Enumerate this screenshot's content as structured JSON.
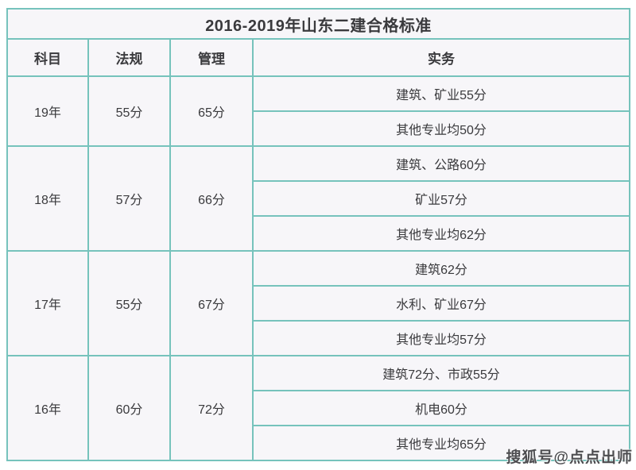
{
  "title": "2016-2019年山东二建合格标准",
  "watermark": "搜狐号@点点出师",
  "colors": {
    "border": "#76c3bc",
    "cell_background": "#f7f6f9",
    "text": "#3a3a3d",
    "page_background": "#ffffff"
  },
  "table": {
    "headers": [
      "科目",
      "法规",
      "管理",
      "实务"
    ],
    "groups": [
      {
        "year": "19年",
        "regulation": "55分",
        "management": "65分",
        "practice": [
          "建筑、矿业55分",
          "其他专业均50分"
        ]
      },
      {
        "year": "18年",
        "regulation": "57分",
        "management": "66分",
        "practice": [
          "建筑、公路60分",
          "矿业57分",
          "其他专业均62分"
        ]
      },
      {
        "year": "17年",
        "regulation": "55分",
        "management": "67分",
        "practice": [
          "建筑62分",
          "水利、矿业67分",
          "其他专业均57分"
        ]
      },
      {
        "year": "16年",
        "regulation": "60分",
        "management": "72分",
        "practice": [
          "建筑72分、市政55分",
          "机电60分",
          "其他专业均65分"
        ]
      }
    ]
  },
  "chart_data": {
    "type": "table",
    "title": "2016-2019年山东二建合格标准",
    "columns": [
      "科目",
      "法规",
      "管理",
      "实务"
    ],
    "rows": [
      [
        "19年",
        "55分",
        "65分",
        "建筑、矿业55分"
      ],
      [
        "19年",
        "55分",
        "65分",
        "其他专业均50分"
      ],
      [
        "18年",
        "57分",
        "66分",
        "建筑、公路60分"
      ],
      [
        "18年",
        "57分",
        "66分",
        "矿业57分"
      ],
      [
        "18年",
        "57分",
        "66分",
        "其他专业均62分"
      ],
      [
        "17年",
        "55分",
        "67分",
        "建筑62分"
      ],
      [
        "17年",
        "55分",
        "67分",
        "水利、矿业67分"
      ],
      [
        "17年",
        "55分",
        "67分",
        "其他专业均57分"
      ],
      [
        "16年",
        "60分",
        "72分",
        "建筑72分、市政55分"
      ],
      [
        "16年",
        "60分",
        "72分",
        "机电60分"
      ],
      [
        "16年",
        "60分",
        "72分",
        "其他专业均65分"
      ]
    ]
  }
}
